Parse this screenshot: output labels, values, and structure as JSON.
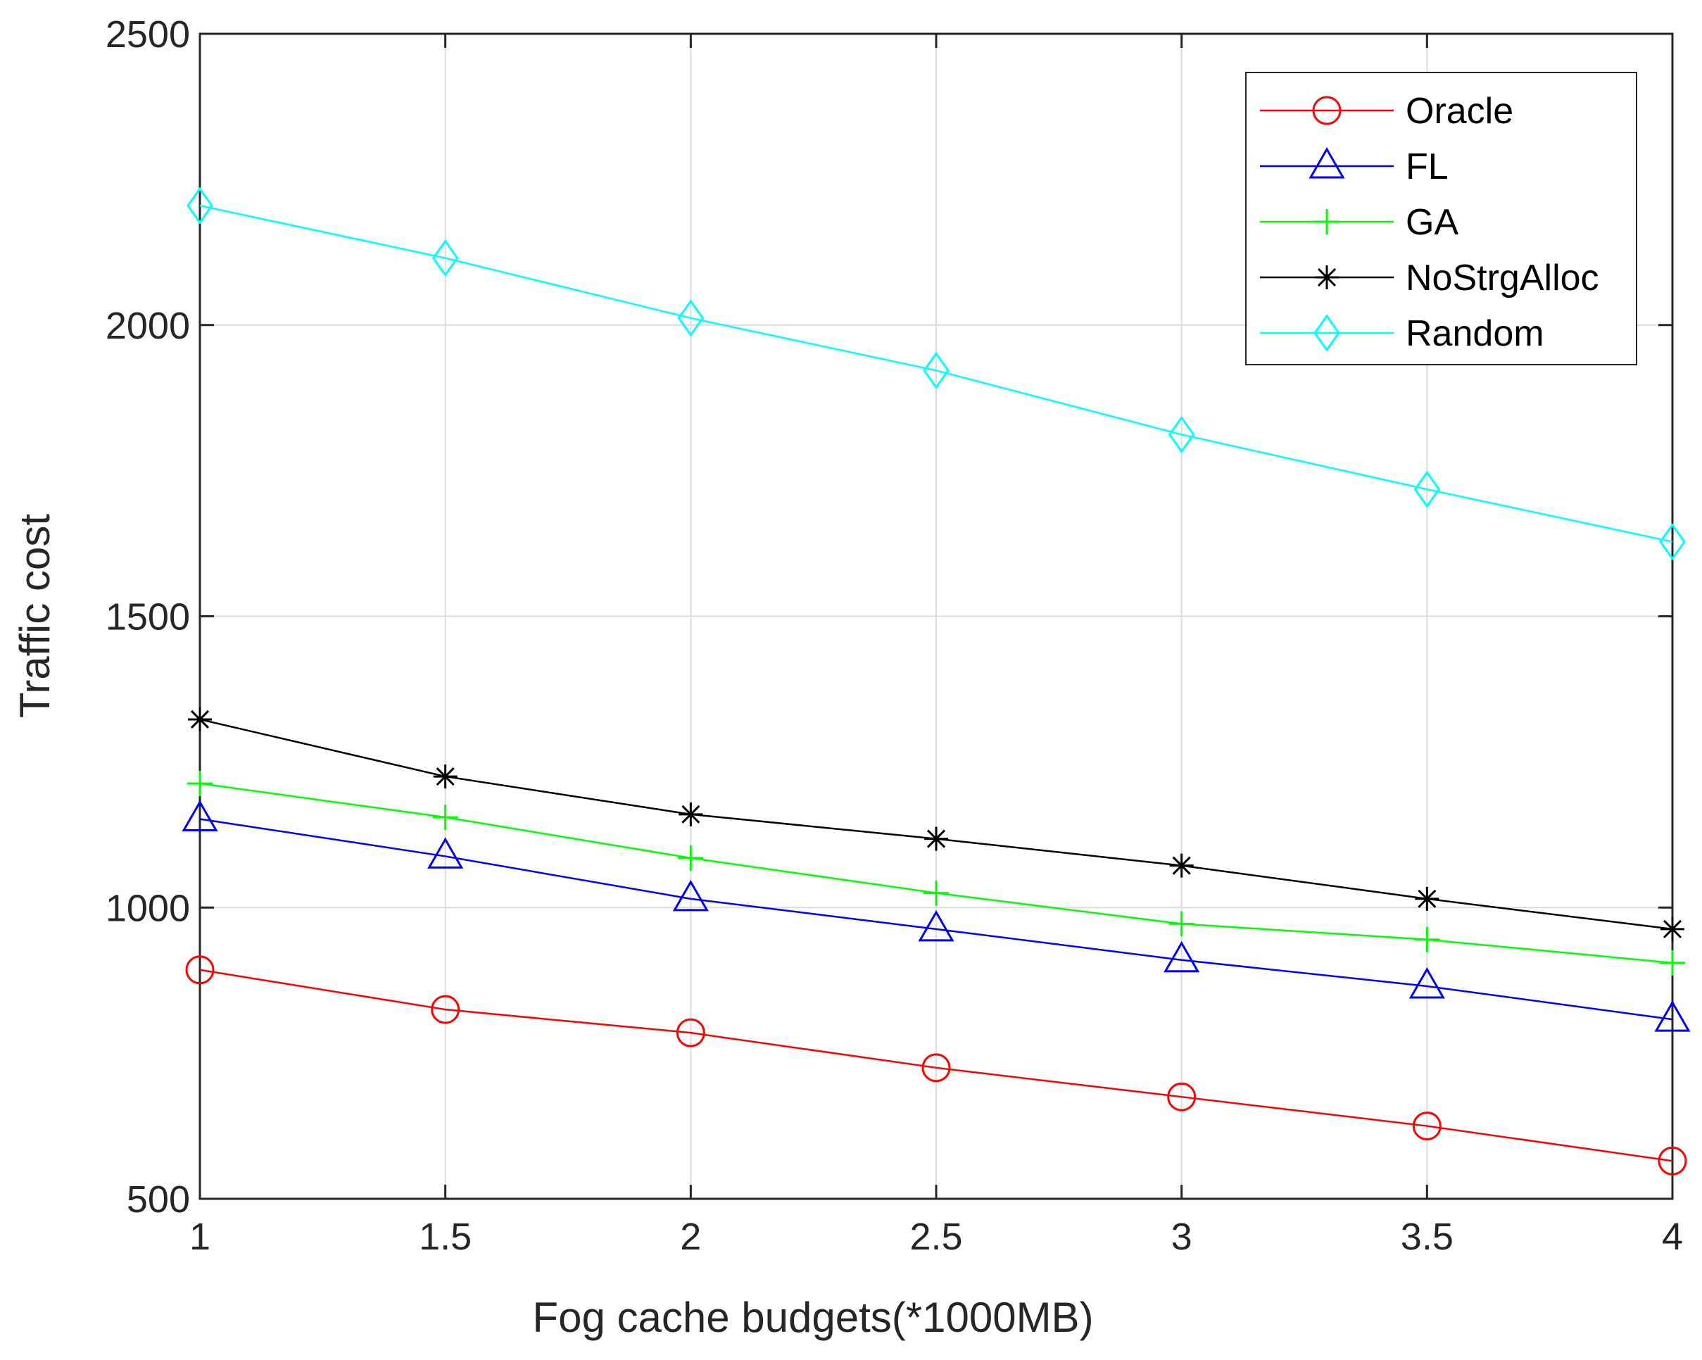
{
  "chart_data": {
    "type": "line",
    "title": "",
    "xlabel": "Fog cache budgets(*1000MB)",
    "ylabel": "Traffic cost",
    "xlim": [
      1,
      4
    ],
    "ylim": [
      500,
      2500
    ],
    "xticks": [
      1,
      1.5,
      2,
      2.5,
      3,
      3.5,
      4
    ],
    "xtick_labels": [
      "1",
      "1.5",
      "2",
      "2.5",
      "3",
      "3.5",
      "4"
    ],
    "yticks": [
      500,
      1000,
      1500,
      2000,
      2500
    ],
    "ytick_labels": [
      "500",
      "1000",
      "1500",
      "2000",
      "2500"
    ],
    "grid": true,
    "legend_position": "top-right",
    "x": [
      1,
      1.5,
      2,
      2.5,
      3,
      3.5,
      4
    ],
    "series": [
      {
        "name": "Oracle",
        "color": "#ff0000",
        "marker": "circle",
        "values": [
          893,
          825,
          785,
          725,
          675,
          625,
          565
        ]
      },
      {
        "name": "FL",
        "color": "#0000ff",
        "marker": "triangle",
        "values": [
          1152,
          1088,
          1015,
          963,
          910,
          865,
          808
        ]
      },
      {
        "name": "GA",
        "color": "#00ff00",
        "marker": "plus",
        "values": [
          1213,
          1155,
          1085,
          1025,
          972,
          945,
          905
        ]
      },
      {
        "name": "NoStrgAlloc",
        "color": "#000000",
        "marker": "asterisk",
        "values": [
          1323,
          1225,
          1160,
          1118,
          1072,
          1015,
          963
        ]
      },
      {
        "name": "Random",
        "color": "#00ffff",
        "marker": "diamond",
        "values": [
          2205,
          2115,
          2012,
          1922,
          1812,
          1718,
          1628
        ]
      }
    ]
  }
}
